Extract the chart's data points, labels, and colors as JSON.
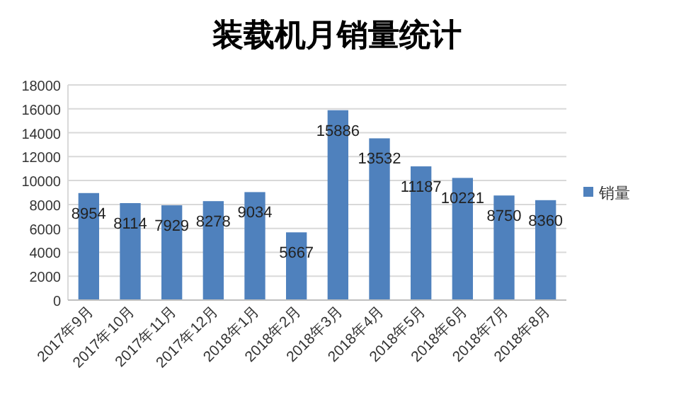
{
  "chart_data": {
    "type": "bar",
    "title": "装载机月销量统计",
    "categories": [
      "2017年9月",
      "2017年10月",
      "2017年11月",
      "2017年12月",
      "2018年1月",
      "2018年2月",
      "2018年3月",
      "2018年4月",
      "2018年5月",
      "2018年6月",
      "2018年7月",
      "2018年8月"
    ],
    "series": [
      {
        "name": "销量",
        "color": "#4f81bd",
        "values": [
          8954,
          8114,
          7929,
          8278,
          9034,
          5667,
          15886,
          13532,
          11187,
          10221,
          8750,
          8360
        ]
      }
    ],
    "ylim": [
      0,
      18000
    ],
    "yticks": [
      0,
      2000,
      4000,
      6000,
      8000,
      10000,
      12000,
      14000,
      16000,
      18000
    ],
    "grid": "y",
    "legend": "right",
    "data_labels": true
  }
}
